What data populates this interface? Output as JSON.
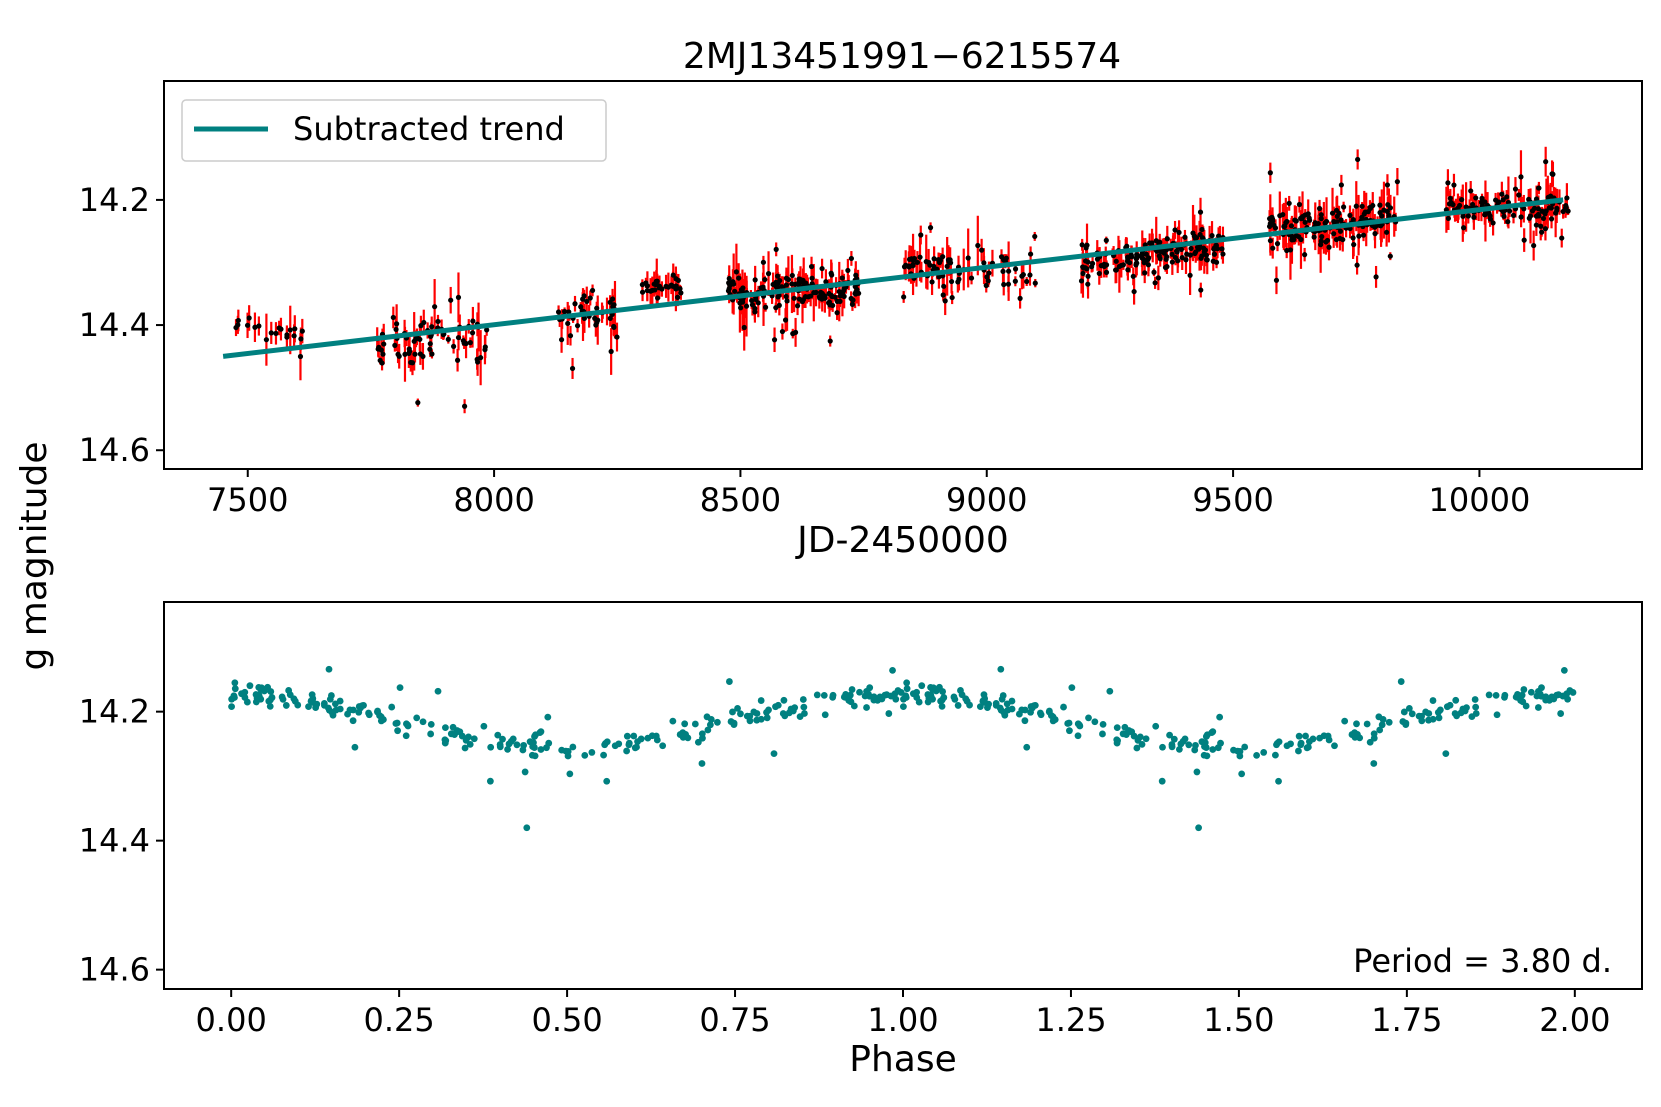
{
  "chart_data": [
    {
      "type": "scatter",
      "panel": "light-curve",
      "title": "2MJ13451991−6215574",
      "xlabel": "JD-2450000",
      "ylabel": "g magnitude",
      "xlim": [
        7330,
        10330
      ],
      "ylim": [
        14.63,
        14.01
      ],
      "y_inverted": true,
      "xticks": [
        7500,
        8000,
        8500,
        9000,
        9500,
        10000
      ],
      "xtick_labels": [
        "7500",
        "8000",
        "8500",
        "9000",
        "9500",
        "10000"
      ],
      "yticks": [
        14.2,
        14.4,
        14.6
      ],
      "ytick_labels": [
        "14.2",
        "14.4",
        "14.6"
      ],
      "legend": {
        "location": "top-left",
        "entries": [
          "Subtracted trend"
        ]
      },
      "trend": {
        "name": "Subtracted trend",
        "x": [
          7450,
          10170
        ],
        "y": [
          14.45,
          14.2
        ],
        "color": "#008080"
      },
      "series": [
        {
          "name": "data",
          "marker_color": "#000000",
          "errorbar_color": "#ff0000",
          "seasons": [
            {
              "x": [
                7455,
                7645
              ],
              "center": [
                14.4,
                14.42
              ],
              "spread": 0.03,
              "n": 20
            },
            {
              "x": [
                7760,
                7990
              ],
              "center": [
                14.43,
                14.42
              ],
              "spread": 0.07,
              "n": 70
            },
            {
              "x": [
                8130,
                8250
              ],
              "center": [
                14.38,
                14.38
              ],
              "spread": 0.06,
              "n": 45
            },
            {
              "x": [
                8300,
                8380
              ],
              "center": [
                14.34,
                14.34
              ],
              "spread": 0.03,
              "n": 30
            },
            {
              "x": [
                8475,
                8740
              ],
              "center": [
                14.35,
                14.34
              ],
              "spread": 0.05,
              "n": 160
            },
            {
              "x": [
                8830,
                8930
              ],
              "center": [
                14.31,
                14.3
              ],
              "spread": 0.04,
              "n": 45
            },
            {
              "x": [
                8940,
                9100
              ],
              "center": [
                14.31,
                14.32
              ],
              "spread": 0.05,
              "n": 35
            },
            {
              "x": [
                9190,
                9480
              ],
              "center": [
                14.3,
                14.28
              ],
              "spread": 0.05,
              "n": 160
            },
            {
              "x": [
                9570,
                9840
              ],
              "center": [
                14.25,
                14.23
              ],
              "spread": 0.05,
              "n": 150
            },
            {
              "x": [
                9930,
                10180
              ],
              "center": [
                14.21,
                14.21
              ],
              "spread": 0.04,
              "n": 120
            }
          ]
        }
      ]
    },
    {
      "type": "scatter",
      "panel": "phased",
      "xlabel": "Phase",
      "ylabel": "g magnitude",
      "xlim": [
        -0.1,
        2.1
      ],
      "ylim": [
        14.63,
        14.03
      ],
      "y_inverted": true,
      "xticks": [
        0.0,
        0.25,
        0.5,
        0.75,
        1.0,
        1.25,
        1.5,
        1.75,
        2.0
      ],
      "xtick_labels": [
        "0.00",
        "0.25",
        "0.50",
        "0.75",
        "1.00",
        "1.25",
        "1.50",
        "1.75",
        "2.00"
      ],
      "yticks": [
        14.2,
        14.4,
        14.6
      ],
      "ytick_labels": [
        "14.2",
        "14.4",
        "14.6"
      ],
      "annotation": "Period = 3.80 d.",
      "series": [
        {
          "name": "phased",
          "color": "#008080",
          "model": {
            "mean": 14.215,
            "amplitude": 0.04,
            "min_phase": 0.5,
            "scatter": 0.03
          },
          "n_per_cycle": 250,
          "outliers": [
            {
              "x": 0.44,
              "y": 14.38
            },
            {
              "x": 1.44,
              "y": 14.38
            }
          ]
        }
      ]
    }
  ]
}
